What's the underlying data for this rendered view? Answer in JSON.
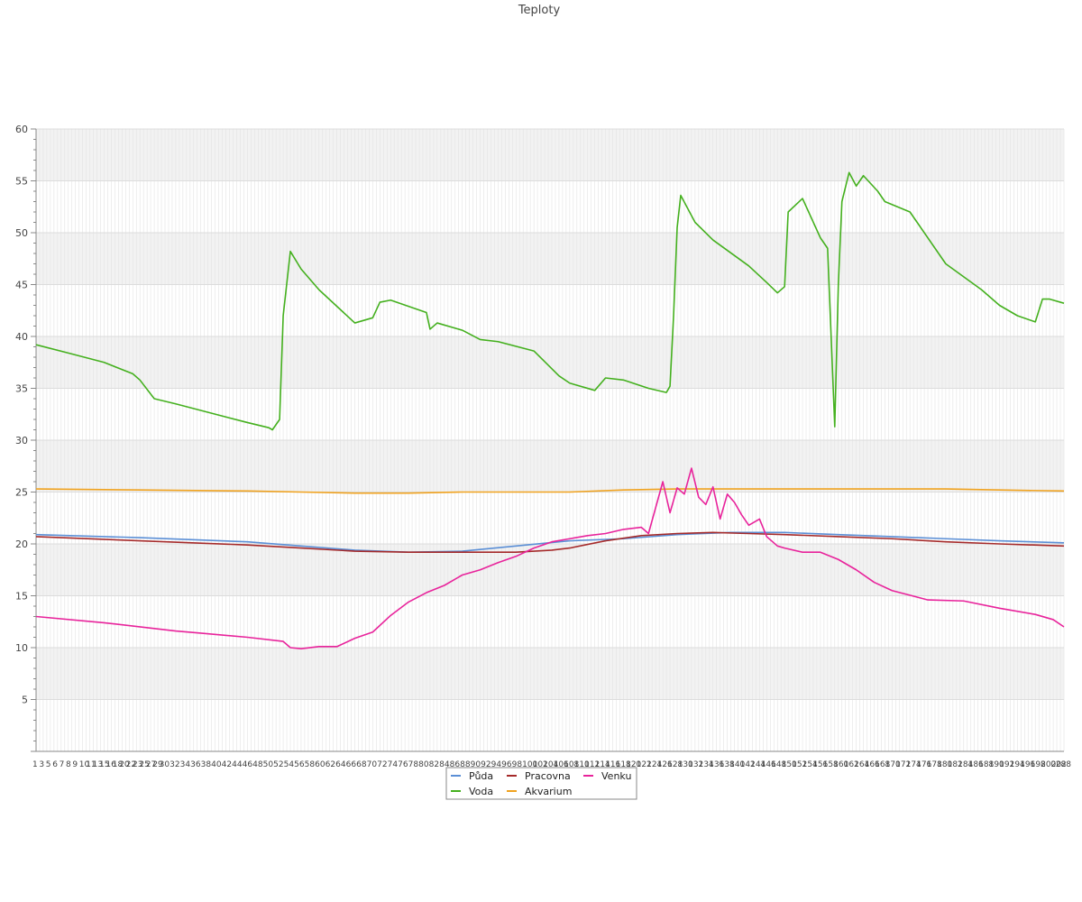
{
  "chart_data": {
    "type": "line",
    "title": "Teploty",
    "xlabel": "",
    "ylabel": "",
    "ylim": [
      0,
      60
    ],
    "yticks": [
      5,
      10,
      15,
      20,
      25,
      30,
      35,
      40,
      45,
      50,
      55,
      60
    ],
    "grid": true,
    "legend_position": "bottom-center",
    "x_count": 288,
    "x_tick_prefix": [
      "1",
      "3",
      "5",
      "6",
      "7",
      "8",
      "9",
      "10",
      "11",
      "13",
      "15",
      "16",
      "18",
      "20",
      "22",
      "23",
      "25",
      "27",
      "29"
    ],
    "x_tick_suffix": [
      "288"
    ],
    "series": [
      {
        "name": "Půda",
        "color": "#5b8fd6",
        "x": [
          1,
          30,
          60,
          75,
          90,
          105,
          120,
          135,
          150,
          165,
          180,
          195,
          210,
          225,
          240,
          255,
          270,
          288
        ],
        "y": [
          20.9,
          20.6,
          20.2,
          19.8,
          19.4,
          19.2,
          19.3,
          19.8,
          20.3,
          20.5,
          20.9,
          21.1,
          21.1,
          20.9,
          20.7,
          20.5,
          20.3,
          20.1
        ]
      },
      {
        "name": "Voda",
        "color": "#44b01e",
        "x": [
          1,
          10,
          20,
          28,
          30,
          34,
          40,
          50,
          60,
          66,
          67,
          69,
          70,
          72,
          75,
          80,
          90,
          95,
          97,
          100,
          110,
          111,
          113,
          120,
          125,
          130,
          140,
          147,
          150,
          157,
          160,
          165,
          172,
          177,
          178,
          179,
          180,
          181,
          185,
          190,
          200,
          205,
          208,
          210,
          211,
          215,
          220,
          222,
          224,
          225,
          226,
          228,
          230,
          232,
          236,
          238,
          245,
          255,
          265,
          270,
          275,
          280,
          282,
          284,
          288
        ],
        "y": [
          39.2,
          38.4,
          37.5,
          36.4,
          35.8,
          34.0,
          33.5,
          32.6,
          31.7,
          31.2,
          31.0,
          32.0,
          42.0,
          48.2,
          46.5,
          44.5,
          41.3,
          41.8,
          43.3,
          43.5,
          42.3,
          40.7,
          41.3,
          40.6,
          39.7,
          39.5,
          38.6,
          36.2,
          35.5,
          34.8,
          36.0,
          35.8,
          35.0,
          34.6,
          35.2,
          42.0,
          50.5,
          53.6,
          51.0,
          49.3,
          46.8,
          45.2,
          44.2,
          44.8,
          52.0,
          53.3,
          49.5,
          48.5,
          31.3,
          45.0,
          53.0,
          55.8,
          54.5,
          55.5,
          54.0,
          53.0,
          52.0,
          47.0,
          44.5,
          43.0,
          42.0,
          41.4,
          43.6,
          43.6,
          43.2
        ]
      },
      {
        "name": "Pracovna",
        "color": "#a52a2a",
        "x": [
          1,
          30,
          60,
          75,
          90,
          105,
          120,
          135,
          145,
          150,
          160,
          170,
          180,
          190,
          200,
          210,
          225,
          240,
          255,
          270,
          288
        ],
        "y": [
          20.7,
          20.3,
          19.9,
          19.6,
          19.3,
          19.2,
          19.2,
          19.2,
          19.4,
          19.6,
          20.3,
          20.8,
          21.0,
          21.1,
          21.0,
          20.9,
          20.7,
          20.5,
          20.2,
          20.0,
          19.8
        ]
      },
      {
        "name": "Akvarium",
        "color": "#f0a21e",
        "x": [
          1,
          30,
          60,
          75,
          90,
          105,
          120,
          135,
          150,
          165,
          180,
          195,
          210,
          225,
          240,
          255,
          270,
          288
        ],
        "y": [
          25.3,
          25.2,
          25.1,
          25.0,
          24.9,
          24.9,
          25.0,
          25.0,
          25.0,
          25.2,
          25.3,
          25.3,
          25.3,
          25.3,
          25.3,
          25.3,
          25.2,
          25.1
        ]
      },
      {
        "name": "Venku",
        "color": "#e8239b",
        "x": [
          1,
          20,
          40,
          47,
          60,
          70,
          72,
          75,
          80,
          85,
          90,
          95,
          100,
          105,
          110,
          115,
          120,
          125,
          130,
          135,
          140,
          145,
          150,
          155,
          160,
          165,
          170,
          172,
          174,
          176,
          178,
          180,
          182,
          184,
          186,
          188,
          190,
          192,
          194,
          196,
          198,
          200,
          203,
          205,
          208,
          210,
          215,
          220,
          225,
          230,
          235,
          240,
          250,
          260,
          270,
          280,
          285,
          288
        ],
        "y": [
          13.0,
          12.4,
          11.6,
          11.4,
          11.0,
          10.6,
          10.0,
          9.9,
          10.1,
          10.1,
          10.9,
          11.5,
          13.1,
          14.4,
          15.3,
          16.0,
          17.0,
          17.5,
          18.2,
          18.8,
          19.6,
          20.2,
          20.5,
          20.8,
          21.0,
          21.4,
          21.6,
          21.0,
          23.5,
          26.0,
          23.0,
          25.4,
          24.8,
          27.3,
          24.5,
          23.8,
          25.5,
          22.4,
          24.8,
          24.0,
          22.8,
          21.8,
          22.4,
          20.7,
          19.8,
          19.6,
          19.2,
          19.2,
          18.5,
          17.5,
          16.3,
          15.5,
          14.6,
          14.5,
          13.8,
          13.2,
          12.7,
          12.0
        ]
      }
    ]
  }
}
